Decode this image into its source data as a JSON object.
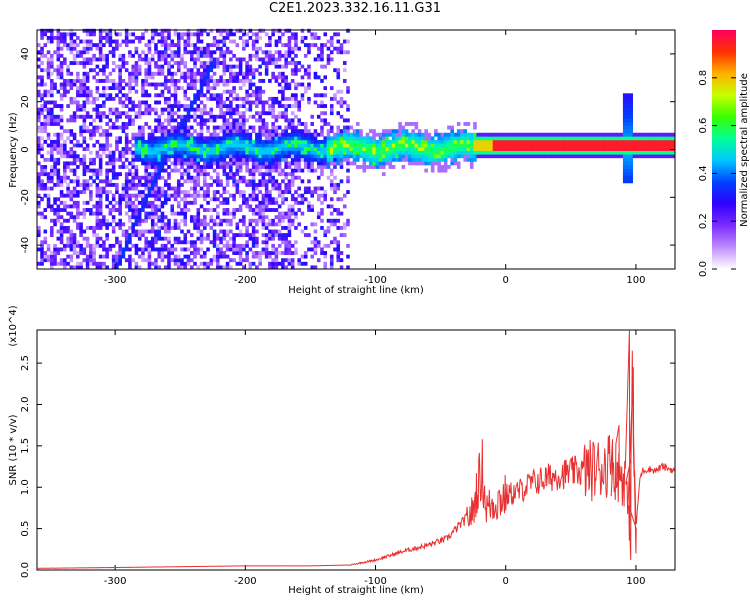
{
  "title": "C2E1.2023.332.16.11.G31",
  "chart_data": [
    {
      "type": "heatmap",
      "xlabel": "Height of straight line (km)",
      "ylabel": "Frequency (Hz)",
      "xlim": [
        -360,
        130
      ],
      "ylim": [
        -50,
        50
      ],
      "xticks": [
        -300,
        -200,
        -100,
        0,
        100
      ],
      "yticks": [
        -40,
        -20,
        0,
        20,
        40
      ],
      "colorbar": {
        "label": "Normalized spectral amplitude",
        "range": [
          0.0,
          1.0
        ],
        "ticks": [
          "0.0",
          "0.2",
          "0.4",
          "0.6",
          "0.8"
        ],
        "colors": [
          "#ffffff",
          "#c08cff",
          "#7a2cff",
          "#3000ff",
          "#0040ff",
          "#00c8ff",
          "#00ff96",
          "#38ff00",
          "#c8ff00",
          "#ffb000",
          "#ff3000",
          "#ff0060"
        ]
      },
      "features": [
        {
          "kind": "noise",
          "x_range": [
            -360,
            -120
          ],
          "freq_range": [
            -50,
            50
          ]
        },
        {
          "kind": "line",
          "points": [
            [
              -300,
              -50
            ],
            [
              -270,
              -12
            ],
            [
              -240,
              20
            ],
            [
              -225,
              36
            ]
          ]
        },
        {
          "kind": "line",
          "points": [
            [
              -268,
              -38
            ],
            [
              -262,
              -20
            ]
          ]
        },
        {
          "kind": "band",
          "x_range": [
            -285,
            -25
          ],
          "freq": 0,
          "halfwidth_hz": 6
        },
        {
          "kind": "tone",
          "x_range": [
            -25,
            130
          ],
          "freq": 1,
          "peak": 0.95
        },
        {
          "kind": "spike",
          "x": 92,
          "freq_range": [
            -14,
            22
          ]
        }
      ]
    },
    {
      "type": "line",
      "xlabel": "Height of straight line (km)",
      "ylabel": "SNR (10 * v/v)",
      "y_multiplier": "(x10^4)",
      "xlim": [
        -360,
        130
      ],
      "ylim": [
        0,
        2.9
      ],
      "xticks": [
        -300,
        -200,
        -100,
        0,
        100
      ],
      "yticks": [
        "0.0",
        "0.5",
        "1.0",
        "1.5",
        "2.0",
        "2.5"
      ],
      "series": [
        {
          "color": "#e83030",
          "x": [
            -360,
            -300,
            -250,
            -200,
            -150,
            -120,
            -100,
            -80,
            -60,
            -45,
            -35,
            -25,
            -22,
            -18,
            -15,
            -10,
            0,
            10,
            20,
            30,
            40,
            50,
            60,
            70,
            75,
            80,
            85,
            88,
            92,
            95,
            97,
            100,
            103,
            105,
            110,
            115,
            120,
            130
          ],
          "y": [
            0.02,
            0.03,
            0.04,
            0.05,
            0.05,
            0.06,
            0.12,
            0.22,
            0.3,
            0.38,
            0.55,
            0.7,
            1.0,
            1.2,
            0.75,
            0.8,
            0.9,
            0.95,
            1.05,
            1.1,
            1.15,
            1.18,
            1.2,
            1.22,
            1.25,
            1.3,
            1.2,
            1.15,
            1.1,
            0.5,
            2.2,
            0.5,
            1.1,
            1.2,
            1.22,
            1.2,
            1.25,
            1.2
          ]
        }
      ],
      "spikes": [
        [
          -18,
          1.58
        ],
        [
          82,
          1.58
        ],
        [
          87,
          1.75
        ],
        [
          95,
          2.9
        ],
        [
          98,
          2.45
        ],
        [
          96,
          0.12
        ],
        [
          100,
          0.2
        ]
      ]
    }
  ]
}
